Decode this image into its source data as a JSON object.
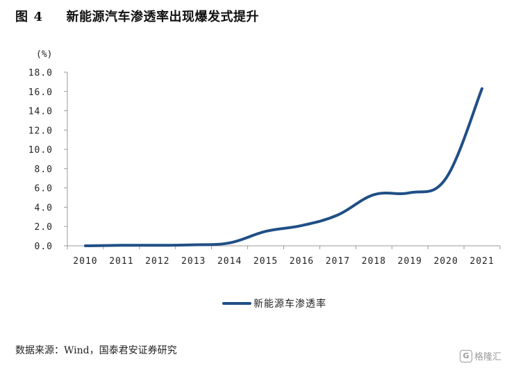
{
  "figure": {
    "label": "图",
    "number": "4",
    "title": "新能源汽车渗透率出现爆发式提升"
  },
  "source_text": "数据来源：Wind，国泰君安证券研究",
  "watermark": {
    "logo_glyph": "G",
    "text": "格隆汇"
  },
  "colors": {
    "series": "#1f4f86",
    "axis": "#999999"
  },
  "chart_data": {
    "type": "line",
    "title": "新能源汽车渗透率出现爆发式提升",
    "unit_label": "(%)",
    "xlabel": "",
    "ylabel": "(%)",
    "ylim": [
      0,
      18
    ],
    "yticks": [
      0,
      2,
      4,
      6,
      8,
      10,
      12,
      14,
      16,
      18
    ],
    "ytick_labels": [
      "0.0",
      "2.0",
      "4.0",
      "6.0",
      "8.0",
      "10.0",
      "12.0",
      "14.0",
      "16.0",
      "18.0"
    ],
    "categories": [
      "2010",
      "2011",
      "2012",
      "2013",
      "2014",
      "2015",
      "2016",
      "2017",
      "2018",
      "2019",
      "2020",
      "2021"
    ],
    "grid": false,
    "legend_position": "bottom-center",
    "series": [
      {
        "name": "新能源车渗透率",
        "color": "#1f4f86",
        "values": [
          0.0,
          0.05,
          0.05,
          0.1,
          0.3,
          1.5,
          2.1,
          3.2,
          5.3,
          5.5,
          7.0,
          16.3
        ]
      }
    ]
  }
}
